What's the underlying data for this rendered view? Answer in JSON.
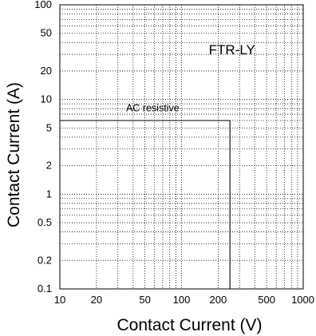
{
  "chart_data": {
    "type": "line",
    "title": "FTR-LY",
    "xlabel": "Contact Current (V)",
    "ylabel": "Contact Current (A)",
    "xscale": "log",
    "yscale": "log",
    "xlim": [
      10,
      1000
    ],
    "ylim": [
      0.1,
      100
    ],
    "grid": true,
    "x_tick_labels": [
      "10",
      "20",
      "50",
      "100",
      "200",
      "500",
      "1000"
    ],
    "x_tick_values": [
      10,
      20,
      50,
      100,
      200,
      500,
      1000
    ],
    "y_tick_labels": [
      "0.1",
      "0.2",
      "0.5",
      "1",
      "2",
      "5",
      "10",
      "20",
      "50",
      "100"
    ],
    "y_tick_values": [
      0.1,
      0.2,
      0.5,
      1,
      2,
      5,
      10,
      20,
      50,
      100
    ],
    "series": [
      {
        "name": "AC resistive",
        "x": [
          10,
          250,
          250
        ],
        "y": [
          6,
          6,
          0.1
        ]
      }
    ],
    "annotations": [
      {
        "text": "FTR-LY",
        "x": 260,
        "y": 30
      },
      {
        "text": "AC resistive",
        "x": 35,
        "y": 7.5
      }
    ]
  },
  "colors": {
    "axis": "#000000",
    "grid": "#000000",
    "series": "#000000"
  }
}
